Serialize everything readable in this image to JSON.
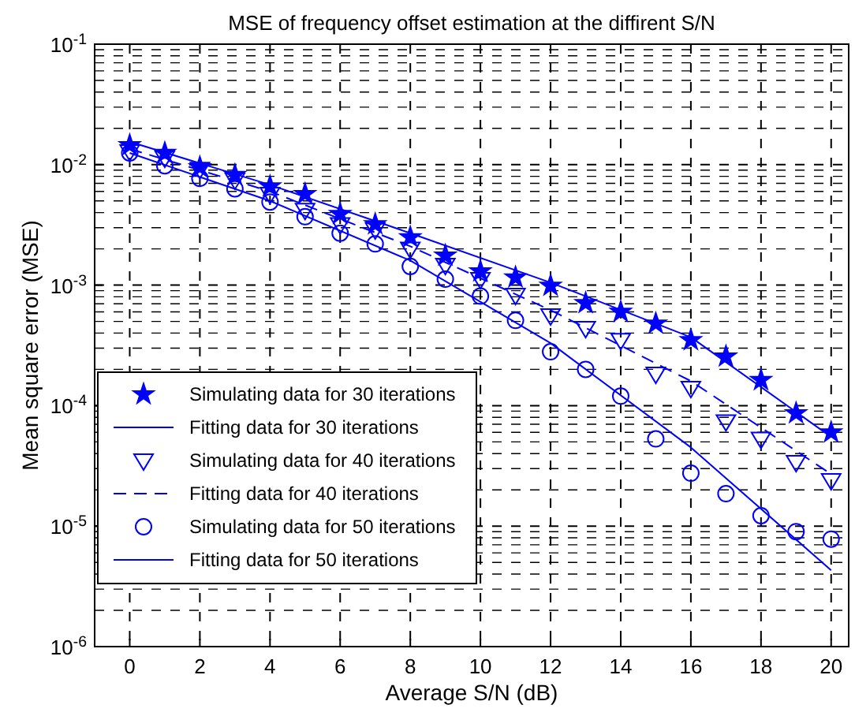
{
  "chart_data": {
    "type": "line",
    "title": "MSE of frequency offset estimation at the diffirent S/N",
    "xlabel": "Average S/N (dB)",
    "ylabel": "Mean square error (MSE)",
    "log": "y",
    "grid": true,
    "legend": "bottom left",
    "xlim": [
      -1,
      20.5
    ],
    "xticks": [
      0,
      2,
      4,
      6,
      8,
      10,
      12,
      14,
      16,
      18,
      20
    ],
    "ylim": [
      1e-06,
      0.1
    ],
    "yticks": [
      {
        "value": 1e-06,
        "label": "10$^{-6}$"
      },
      {
        "value": 1e-05,
        "label": "10$^{-5}$"
      },
      {
        "value": 0.0001,
        "label": "10$^{-4}$"
      },
      {
        "value": 0.001,
        "label": "10$^{-3}$"
      },
      {
        "value": 0.01,
        "label": "10$^{-2}$"
      },
      {
        "value": 0.1,
        "label": "10$^{-1}$"
      }
    ],
    "series": [
      {
        "name": "Simulating data for 30 iterations",
        "type": "scatter",
        "marker": "star",
        "color": "#0000ff",
        "x": [
          0,
          1,
          2,
          3,
          4,
          5,
          6,
          7,
          8,
          9,
          10,
          11,
          12,
          13,
          14,
          15,
          16,
          17,
          18,
          19,
          20
        ],
        "values": [
          0.0145,
          0.0125,
          0.0095,
          0.0082,
          0.0066,
          0.0057,
          0.0039,
          0.0032,
          0.0025,
          0.00176,
          0.0013,
          0.00116,
          0.00099,
          0.00071,
          0.0006,
          0.00048,
          0.00035,
          0.000256,
          0.000163,
          8.65e-05,
          6e-05
        ]
      },
      {
        "name": "Fitting data for 30 iterations",
        "type": "line",
        "marker": "none",
        "line_style": "solid",
        "color": "#0000ff",
        "x": [
          0,
          4,
          8,
          12,
          16,
          20
        ],
        "values": [
          0.0155,
          0.0068,
          0.0027,
          0.00105,
          0.00037,
          5.5e-05
        ]
      },
      {
        "name": "Simulating data for 40 iterations",
        "type": "scatter",
        "marker": "triangle",
        "color": "#0000ff",
        "x": [
          0,
          1,
          2,
          3,
          4,
          5,
          6,
          7,
          8,
          9,
          10,
          11,
          12,
          13,
          14,
          15,
          16,
          17,
          18,
          19,
          20
        ],
        "values": [
          0.0129,
          0.0114,
          0.0092,
          0.0075,
          0.0057,
          0.0042,
          0.0032,
          0.0029,
          0.002,
          0.00147,
          0.00112,
          0.00083,
          0.00056,
          0.00044,
          0.00035,
          0.000184,
          0.00014,
          7.4e-05,
          5.3e-05,
          3.4e-05,
          2.4e-05
        ]
      },
      {
        "name": "Fitting data for 40 iterations",
        "type": "line",
        "marker": "none",
        "line_style": "dashed",
        "color": "#0000ff",
        "x": [
          0,
          4,
          8,
          12,
          16,
          20
        ],
        "values": [
          0.0135,
          0.006,
          0.0021,
          0.00062,
          0.00016,
          2.7e-05
        ]
      },
      {
        "name": "Simulating data for 50 iterations",
        "type": "scatter",
        "marker": "circle",
        "color": "#0000ff",
        "x": [
          0,
          1,
          2,
          3,
          4,
          5,
          6,
          7,
          8,
          9,
          10,
          11,
          12,
          13,
          14,
          15,
          16,
          17,
          18,
          19,
          20
        ],
        "values": [
          0.0125,
          0.0098,
          0.0077,
          0.0063,
          0.0049,
          0.0037,
          0.0027,
          0.0022,
          0.00143,
          0.00112,
          0.00081,
          0.00051,
          0.00028,
          0.0002,
          0.00012,
          5.3e-05,
          2.75e-05,
          1.86e-05,
          1.22e-05,
          9e-06,
          7.8e-06
        ]
      },
      {
        "name": "Fitting data for 50 iterations",
        "type": "line",
        "marker": "none",
        "line_style": "solid",
        "color": "#0000ff",
        "x": [
          0,
          4,
          8,
          12,
          16,
          20
        ],
        "values": [
          0.0125,
          0.005,
          0.0016,
          0.00033,
          4.5e-05,
          4.3e-06
        ]
      }
    ]
  }
}
